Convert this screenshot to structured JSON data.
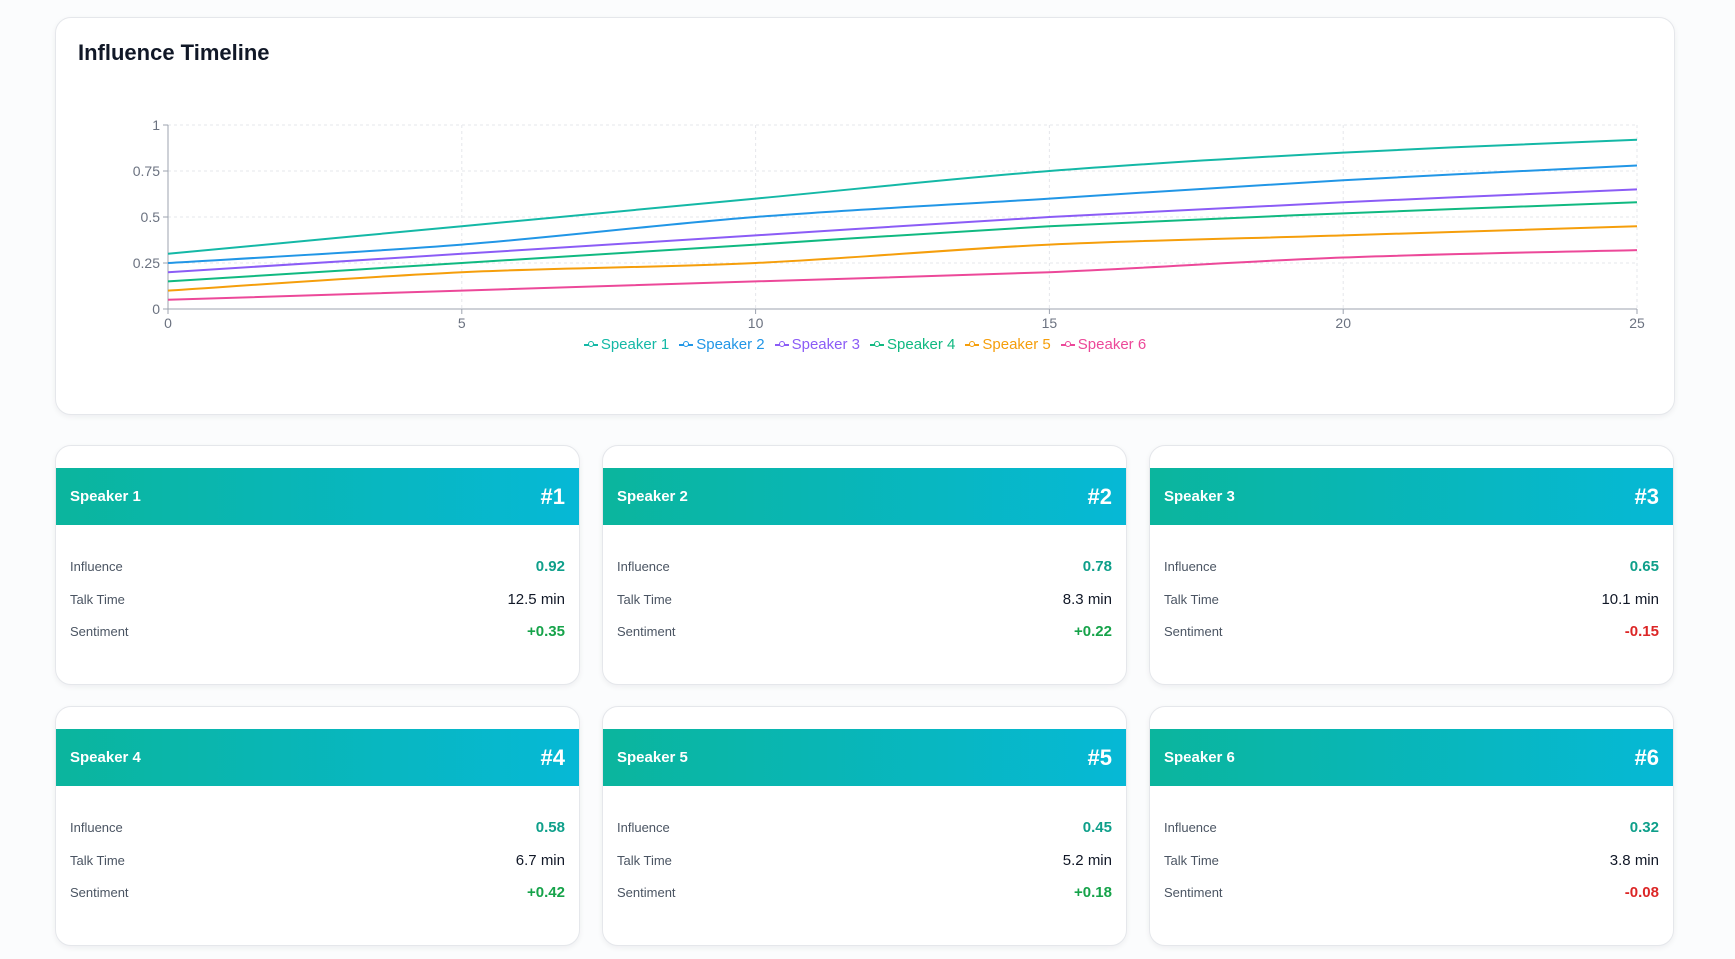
{
  "chart_data": {
    "type": "line",
    "title": "Influence Timeline",
    "x": [
      0,
      5,
      10,
      15,
      20,
      25
    ],
    "xlim": [
      0,
      25
    ],
    "ylim": [
      0,
      1
    ],
    "x_ticks": [
      "0",
      "5",
      "10",
      "15",
      "20",
      "25"
    ],
    "y_ticks": [
      "0",
      "0.25",
      "0.5",
      "0.75",
      "1"
    ],
    "y_tick_values": [
      0,
      0.25,
      0.5,
      0.75,
      1
    ],
    "grid": true,
    "legend_position": "bottom-center",
    "series": [
      {
        "name": "Speaker 1",
        "color": "#14b8a6",
        "values": [
          0.3,
          0.45,
          0.6,
          0.75,
          0.85,
          0.92
        ]
      },
      {
        "name": "Speaker 2",
        "color": "#2196e6",
        "values": [
          0.25,
          0.35,
          0.5,
          0.6,
          0.7,
          0.78
        ]
      },
      {
        "name": "Speaker 3",
        "color": "#8b5cf6",
        "values": [
          0.2,
          0.3,
          0.4,
          0.5,
          0.58,
          0.65
        ]
      },
      {
        "name": "Speaker 4",
        "color": "#10b981",
        "values": [
          0.15,
          0.25,
          0.35,
          0.45,
          0.52,
          0.58
        ]
      },
      {
        "name": "Speaker 5",
        "color": "#f59e0b",
        "values": [
          0.1,
          0.2,
          0.25,
          0.35,
          0.4,
          0.45
        ]
      },
      {
        "name": "Speaker 6",
        "color": "#ec4899",
        "values": [
          0.05,
          0.1,
          0.15,
          0.2,
          0.28,
          0.32
        ]
      }
    ]
  },
  "labels": {
    "influence": "Influence",
    "talk_time": "Talk Time",
    "sentiment": "Sentiment"
  },
  "speakers": [
    {
      "name": "Speaker 1",
      "rank": "#1",
      "influence": "0.92",
      "talk_time": "12.5 min",
      "sentiment": "+0.35",
      "sentiment_sign": "pos"
    },
    {
      "name": "Speaker 2",
      "rank": "#2",
      "influence": "0.78",
      "talk_time": "8.3 min",
      "sentiment": "+0.22",
      "sentiment_sign": "pos"
    },
    {
      "name": "Speaker 3",
      "rank": "#3",
      "influence": "0.65",
      "talk_time": "10.1 min",
      "sentiment": "-0.15",
      "sentiment_sign": "neg"
    },
    {
      "name": "Speaker 4",
      "rank": "#4",
      "influence": "0.58",
      "talk_time": "6.7 min",
      "sentiment": "+0.42",
      "sentiment_sign": "pos"
    },
    {
      "name": "Speaker 5",
      "rank": "#5",
      "influence": "0.45",
      "talk_time": "5.2 min",
      "sentiment": "+0.18",
      "sentiment_sign": "pos"
    },
    {
      "name": "Speaker 6",
      "rank": "#6",
      "influence": "0.32",
      "talk_time": "3.8 min",
      "sentiment": "-0.08",
      "sentiment_sign": "neg"
    }
  ]
}
